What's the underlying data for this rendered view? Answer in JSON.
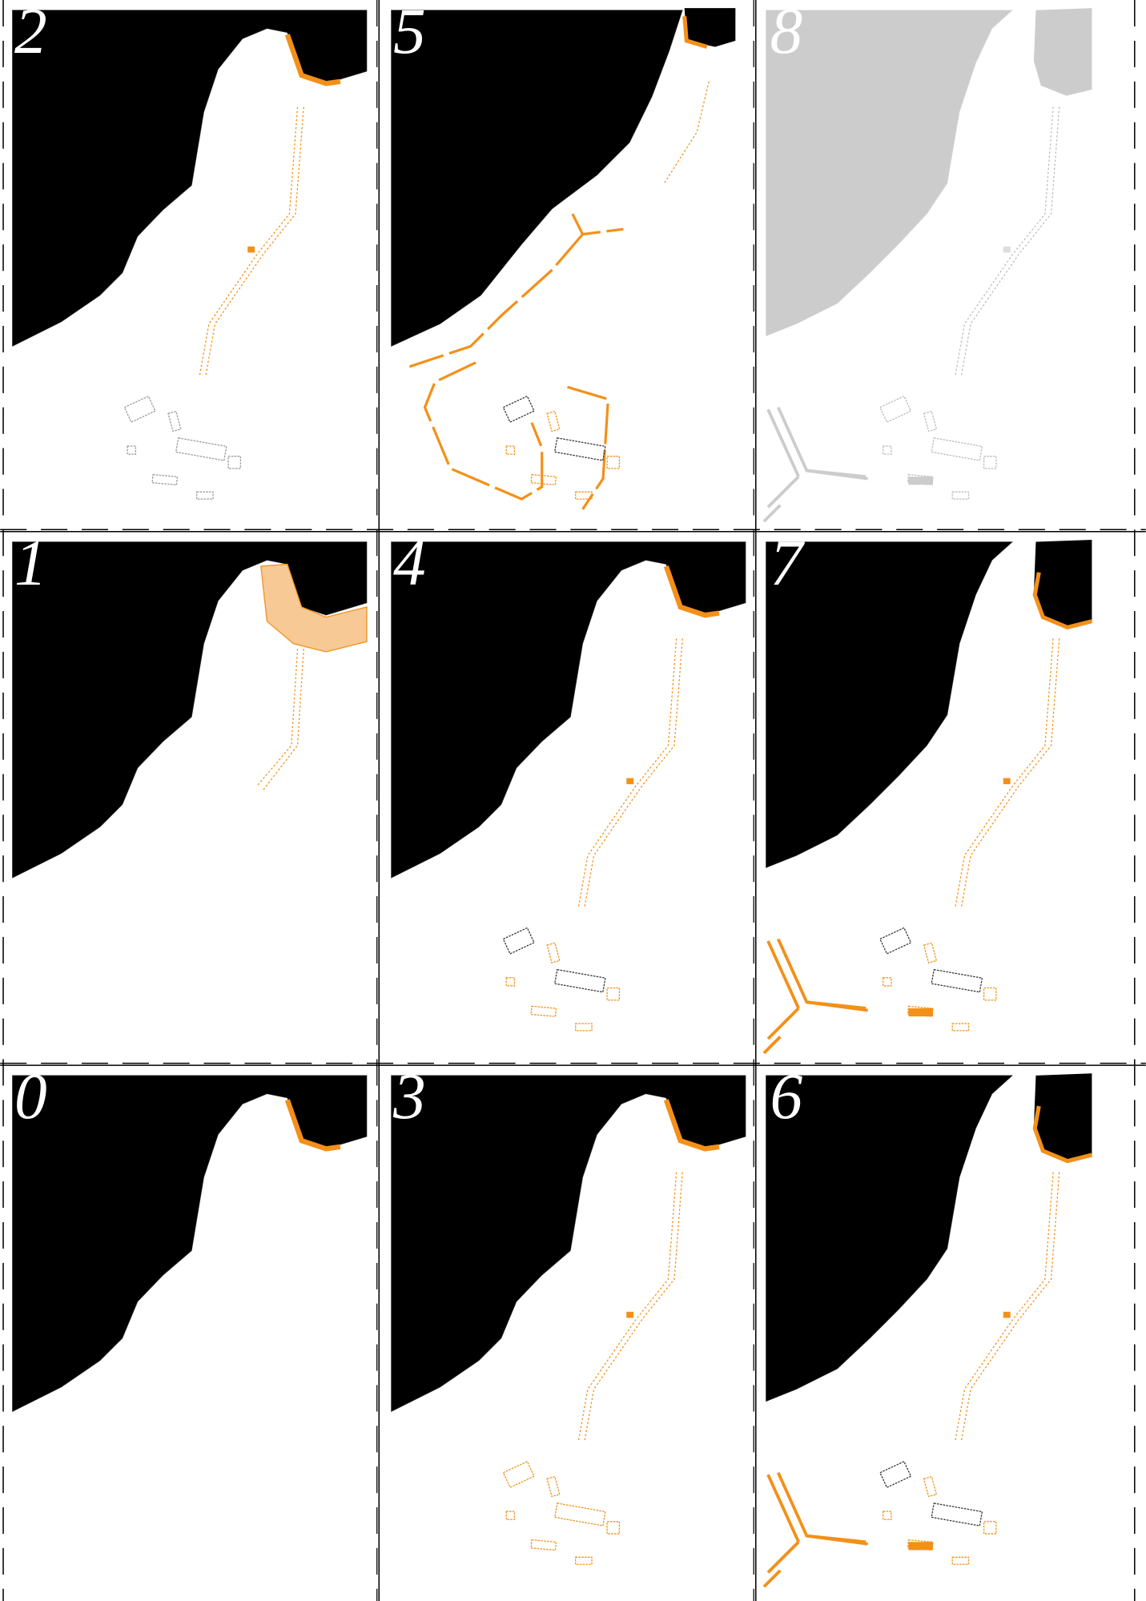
{
  "panels": [
    {
      "label": "2"
    },
    {
      "label": "5"
    },
    {
      "label": "8"
    },
    {
      "label": "1"
    },
    {
      "label": "4"
    },
    {
      "label": "7"
    },
    {
      "label": "0"
    },
    {
      "label": "3"
    },
    {
      "label": "6"
    }
  ]
}
